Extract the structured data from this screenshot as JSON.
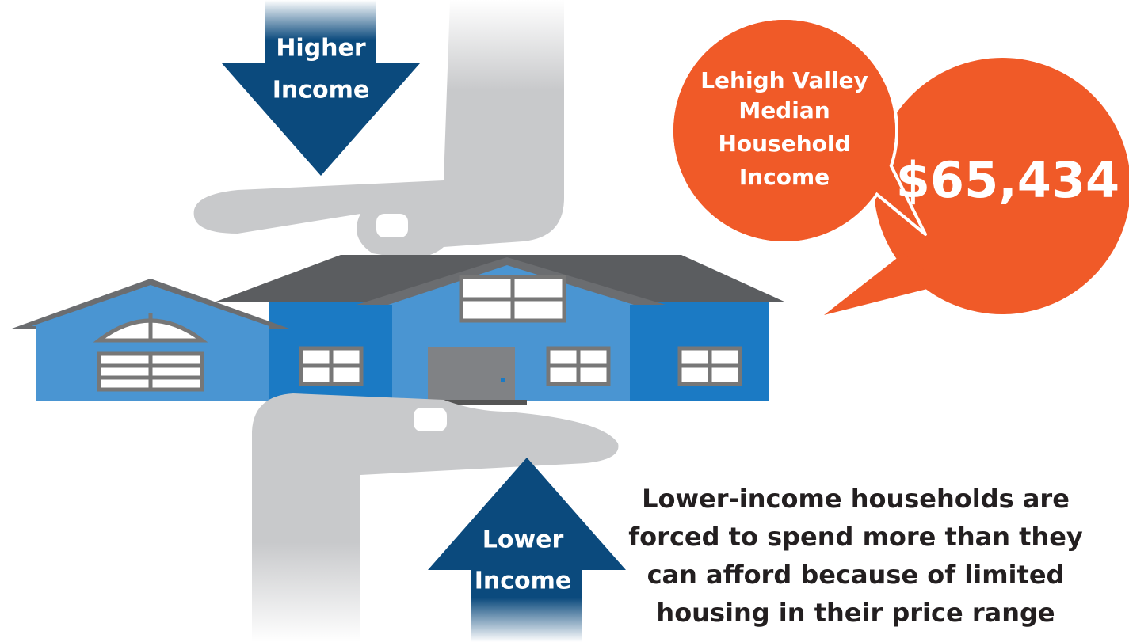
{
  "arrows": {
    "higher": [
      "Higher",
      "Income"
    ],
    "lower": [
      "Lower",
      "Income"
    ]
  },
  "bubble": {
    "label": [
      "Lehigh Valley",
      "Median",
      "Household",
      "Income"
    ],
    "value": "$65,434"
  },
  "caption": [
    "Lower-income households are",
    "forced to spend more than they",
    "can afford because of limited",
    "housing in their price range"
  ]
}
